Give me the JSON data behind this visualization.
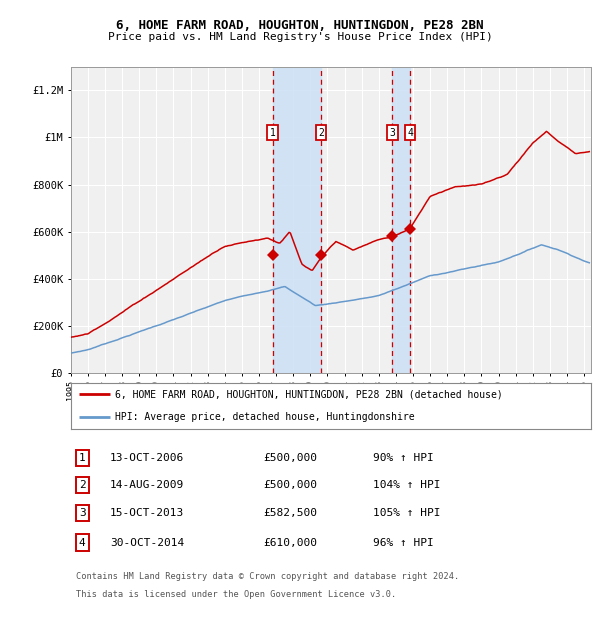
{
  "title1": "6, HOME FARM ROAD, HOUGHTON, HUNTINGDON, PE28 2BN",
  "title2": "Price paid vs. HM Land Registry's House Price Index (HPI)",
  "ylim": [
    0,
    1300000
  ],
  "yticks": [
    0,
    200000,
    400000,
    600000,
    800000,
    1000000,
    1200000
  ],
  "ytick_labels": [
    "£0",
    "£200K",
    "£400K",
    "£600K",
    "£800K",
    "£1M",
    "£1.2M"
  ],
  "plot_bg_color": "#f0f0f0",
  "grid_color": "#ffffff",
  "red_line_color": "#cc0000",
  "blue_line_color": "#6699cc",
  "shade_color": "#cce0f5",
  "dashed_line_color": "#cc0000",
  "transactions": [
    {
      "label": "1",
      "date_str": "13-OCT-2006",
      "year": 2006.79,
      "price": 500000,
      "pct": "90%",
      "dir": "↑"
    },
    {
      "label": "2",
      "date_str": "14-AUG-2009",
      "year": 2009.62,
      "price": 500000,
      "pct": "104%",
      "dir": "↑"
    },
    {
      "label": "3",
      "date_str": "15-OCT-2013",
      "year": 2013.79,
      "price": 582500,
      "pct": "105%",
      "dir": "↑"
    },
    {
      "label": "4",
      "date_str": "30-OCT-2014",
      "year": 2014.83,
      "price": 610000,
      "pct": "96%",
      "dir": "↑"
    }
  ],
  "legend_red": "6, HOME FARM ROAD, HOUGHTON, HUNTINGDON, PE28 2BN (detached house)",
  "legend_blue": "HPI: Average price, detached house, Huntingdonshire",
  "footer1": "Contains HM Land Registry data © Crown copyright and database right 2024.",
  "footer2": "This data is licensed under the Open Government Licence v3.0."
}
